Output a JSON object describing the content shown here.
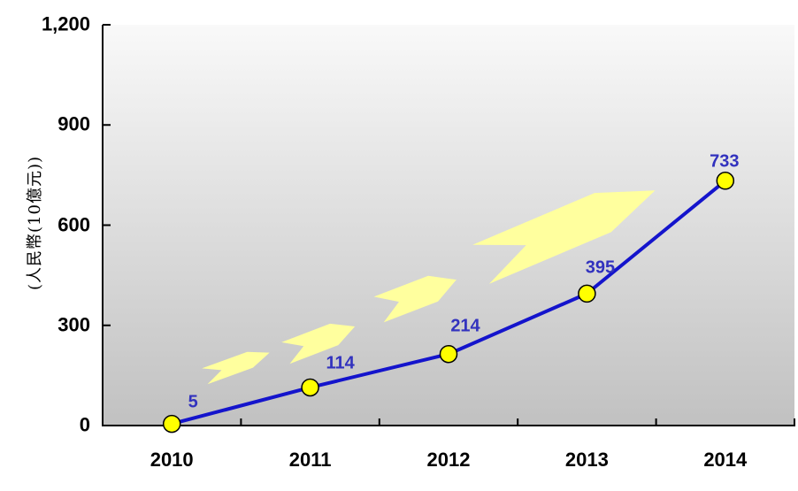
{
  "chart_data": {
    "type": "line",
    "title": "",
    "ylabel": "(人民幣(10億元))",
    "xlabel": "",
    "categories": [
      "2010",
      "2011",
      "2012",
      "2013",
      "2014"
    ],
    "values": [
      5,
      114,
      214,
      395,
      733
    ],
    "data_labels": [
      "5",
      "114",
      "214",
      "395",
      "733"
    ],
    "y_axis": {
      "min": 0,
      "max": 1200,
      "tick_values": [
        0,
        300,
        600,
        900,
        1200
      ],
      "tick_labels": [
        "0",
        "300",
        "600",
        "900",
        "1,200"
      ]
    },
    "grid": false,
    "legend": "none",
    "annotations": [
      "growth-arrow",
      "growth-arrow",
      "growth-arrow",
      "growth-arrow"
    ]
  },
  "style": {
    "line_color": "#1414CC",
    "marker_fill": "#FFFF00",
    "marker_stroke": "#000000",
    "data_label_color": "#3232BE",
    "axis_color": "#000000",
    "axis_label_color": "#000000",
    "arrow_fill": "#FFFF9E",
    "plot_bg_top": "#F9F9F9",
    "plot_bg_bottom": "#C1C1C1",
    "page_bg": "#FFFFFF"
  }
}
